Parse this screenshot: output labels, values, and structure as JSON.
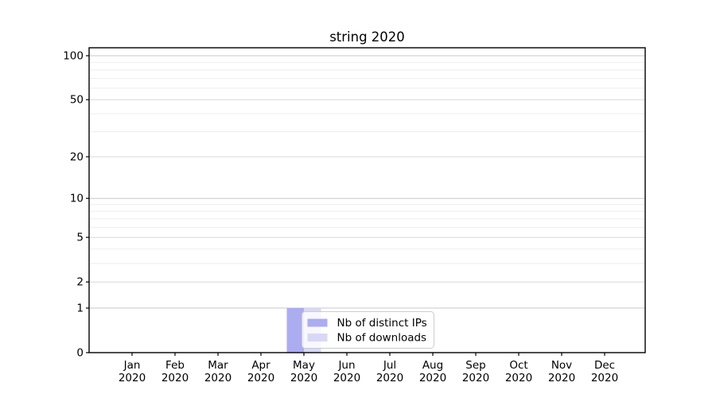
{
  "chart_data": {
    "type": "bar",
    "title": "string 2020",
    "categories": [
      "Jan",
      "Feb",
      "Mar",
      "Apr",
      "May",
      "Jun",
      "Jul",
      "Aug",
      "Sep",
      "Oct",
      "Nov",
      "Dec"
    ],
    "category_year_line": "2020",
    "series": [
      {
        "name": "Nb of distinct IPs",
        "color": "#acacf0",
        "values": [
          0,
          0,
          0,
          0,
          1,
          0,
          0,
          0,
          0,
          0,
          0,
          0
        ]
      },
      {
        "name": "Nb of downloads",
        "color": "#d8d8f6",
        "values": [
          0,
          0,
          0,
          0,
          1,
          0,
          0,
          0,
          0,
          0,
          0,
          0
        ]
      }
    ],
    "xlabel": "",
    "ylabel": "",
    "yscale": "symlog",
    "yticks": [
      0,
      1,
      2,
      5,
      10,
      20,
      50,
      100
    ],
    "ylim": [
      0,
      115
    ],
    "grid": "horizontal",
    "minor_gridlines": [
      3,
      4,
      6,
      7,
      8,
      9,
      30,
      40,
      60,
      70,
      80,
      90
    ],
    "legend": {
      "position": "inside-bottom-left-of-center",
      "entries": [
        "Nb of distinct IPs",
        "Nb of downloads"
      ]
    }
  },
  "colors": {
    "background": "#ffffff",
    "spine": "#000000",
    "tick_label": "#000000",
    "grid_decade": "#c8c8c8",
    "grid_labeled": "#d8d8d8",
    "grid_minor": "#eeeeee",
    "legend_border": "#cccccc",
    "legend_background": "rgba(255,255,255,0.8)",
    "bar_distinct_ips": "#acacf0",
    "bar_downloads": "#d8d8f6"
  }
}
